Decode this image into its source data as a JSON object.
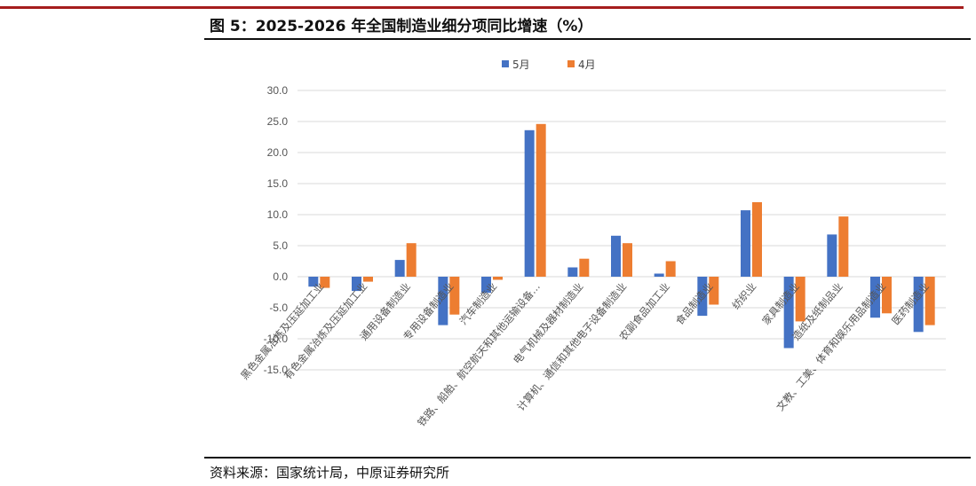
{
  "figure": {
    "title": "图 5：2025-2026 年全国制造业细分项同比增速（%）",
    "source": "资料来源：国家统计局，中原证券研究所"
  },
  "colors": {
    "rule": "#a51d1d",
    "series_5": "#4472c4",
    "series_4": "#ed7d31",
    "grid": "#d9d9d9"
  },
  "chart_data": {
    "type": "bar",
    "title": "",
    "xlabel": "",
    "ylabel": "",
    "ylim": [
      -15,
      30
    ],
    "yticks": [
      30.0,
      25.0,
      20.0,
      15.0,
      10.0,
      5.0,
      0.0,
      -5.0,
      -10.0,
      -15.0
    ],
    "grid": true,
    "legend_position": "top-center",
    "categories": [
      "黑色金属冶炼及压延加工业",
      "有色金属冶炼及压延加工业",
      "通用设备制造业",
      "专用设备制造业",
      "汽车制造业",
      "铁路、船舶、航空航天和其他运输设备…",
      "电气机械及器材制造业",
      "计算机、通信和其他电子设备制造业",
      "农副食品加工业",
      "食品制造业",
      "纺织业",
      "家具制造业",
      "造纸及纸制品业",
      "文教、工美、体育和娱乐用品制造业",
      "医药制造业"
    ],
    "series": [
      {
        "name": "5月",
        "values": [
          -1.6,
          -2.3,
          2.7,
          -7.8,
          -2.6,
          23.6,
          1.5,
          6.6,
          0.5,
          -6.3,
          10.7,
          -11.5,
          6.8,
          -6.6,
          -8.9
        ]
      },
      {
        "name": "4月",
        "values": [
          -1.8,
          -0.8,
          5.4,
          -6.1,
          -0.5,
          24.6,
          2.9,
          5.4,
          2.5,
          -4.5,
          12.0,
          -7.2,
          9.7,
          -5.9,
          -7.8
        ]
      }
    ]
  }
}
